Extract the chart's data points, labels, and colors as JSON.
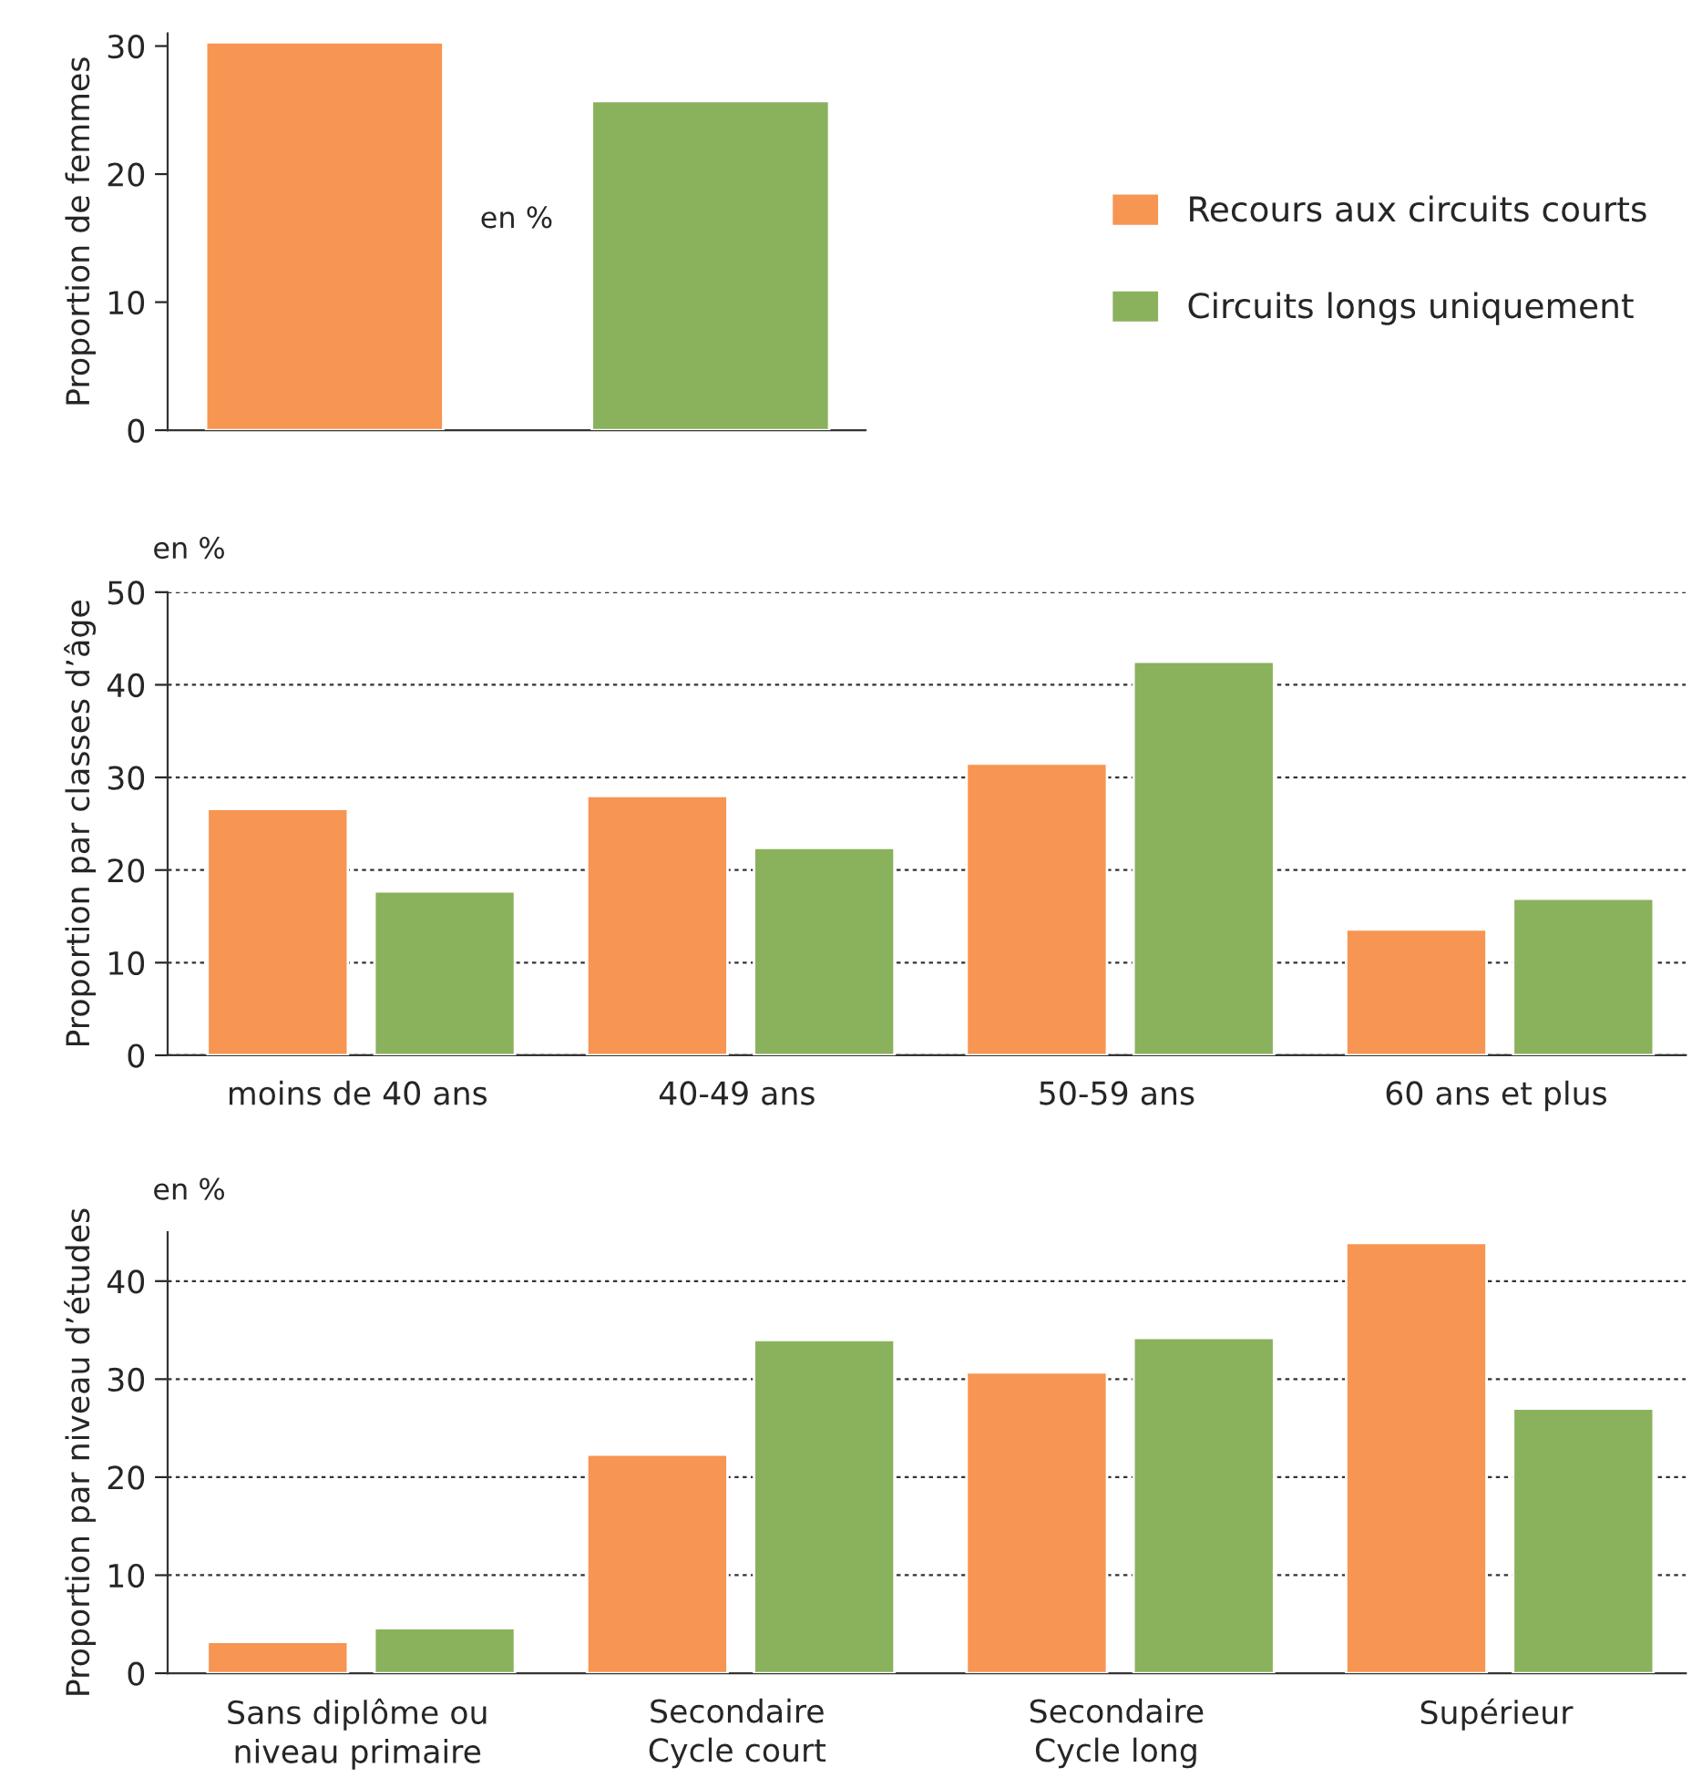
{
  "chart_data": [
    {
      "type": "bar",
      "ylabel": "Proportion de femmes",
      "categories": [
        null
      ],
      "ylim": [
        0,
        31
      ],
      "yticks": [
        0,
        10,
        20,
        30
      ],
      "legend": "right",
      "annotations": [
        "en %"
      ],
      "series": [
        {
          "name": "Recours aux circuits courts",
          "color": "#f79552",
          "values": [
            30.3
          ]
        },
        {
          "name": "Circuits longs uniquement",
          "color": "#8ab15c",
          "values": [
            25.7
          ]
        }
      ]
    },
    {
      "type": "bar",
      "ylabel": "Proportion par classes d’âge",
      "categories": [
        "moins de 40 ans",
        "40-49 ans",
        "50-59 ans",
        "60 ans et plus"
      ],
      "ylim": [
        0,
        50
      ],
      "yticks": [
        0,
        10,
        20,
        30,
        40,
        50
      ],
      "grid": "y",
      "annotations": [
        "en %"
      ],
      "series": [
        {
          "color": "#f79552",
          "values": [
            26.6,
            28.0,
            31.5,
            13.6
          ]
        },
        {
          "color": "#8ab15c",
          "values": [
            17.7,
            22.4,
            42.5,
            16.9
          ]
        }
      ]
    },
    {
      "type": "bar",
      "ylabel": "Proportion par niveau d’études",
      "categories": [
        "Sans diplôme ou\nniveau primaire",
        "Secondaire\nCycle court",
        "Secondaire\nCycle long",
        "Supérieur"
      ],
      "ylim": [
        0,
        45
      ],
      "yticks": [
        0,
        10,
        20,
        30,
        40
      ],
      "grid": "y",
      "annotations": [
        "en %"
      ],
      "series": [
        {
          "color": "#f79552",
          "values": [
            3.2,
            22.3,
            30.7,
            43.9
          ]
        },
        {
          "color": "#8ab15c",
          "values": [
            4.6,
            34.0,
            34.2,
            27.0
          ]
        }
      ]
    }
  ]
}
